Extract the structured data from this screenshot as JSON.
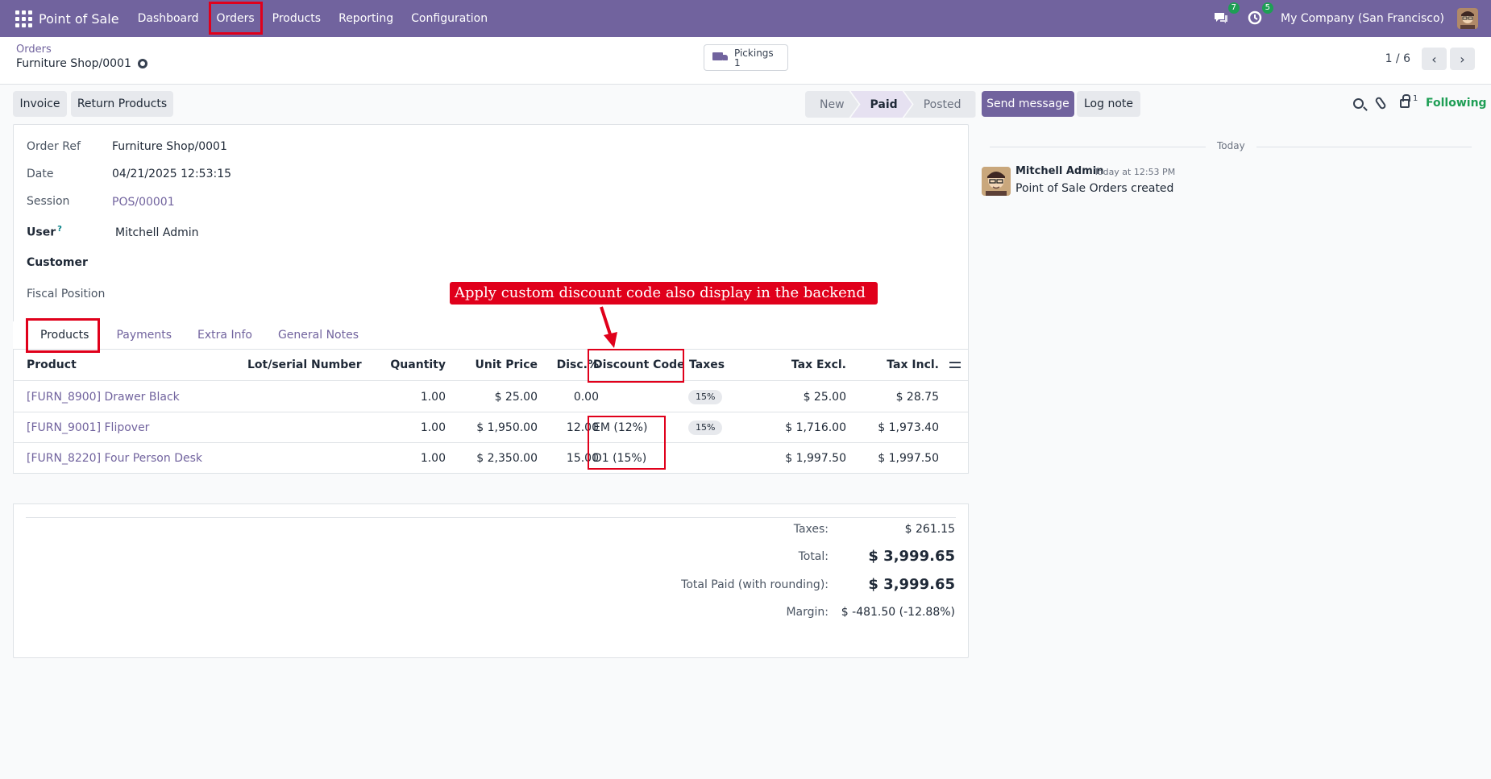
{
  "navbar": {
    "brand": "Point of Sale",
    "menu": [
      "Dashboard",
      "Orders",
      "Products",
      "Reporting",
      "Configuration"
    ],
    "messages_badge": "7",
    "activities_badge": "5",
    "company": "My Company (San Francisco)"
  },
  "breadcrumb": {
    "parent": "Orders",
    "current": "Furniture Shop/0001"
  },
  "smart_button": {
    "label": "Pickings",
    "count": "1"
  },
  "pager": {
    "value": "1 / 6",
    "prev": "‹",
    "next": "›"
  },
  "actions": {
    "invoice": "Invoice",
    "return_products": "Return Products"
  },
  "status": {
    "stages": [
      "New",
      "Paid",
      "Posted"
    ],
    "active": "Paid"
  },
  "form": {
    "order_ref_label": "Order Ref",
    "order_ref": "Furniture Shop/0001",
    "date_label": "Date",
    "date": "04/21/2025 12:53:15",
    "session_label": "Session",
    "session": "POS/00001",
    "user_label": "User",
    "user_help": "?",
    "user": "Mitchell Admin",
    "customer_label": "Customer",
    "fiscal_position_label": "Fiscal Position"
  },
  "annotation": "Apply custom discount code also display in the backend",
  "tabs": [
    "Products",
    "Payments",
    "Extra Info",
    "General Notes"
  ],
  "lines": {
    "headers": [
      "Product",
      "Lot/serial Number",
      "Quantity",
      "Unit Price",
      "Disc.%",
      "Discount Code",
      "Taxes",
      "Tax Excl.",
      "Tax Incl."
    ],
    "rows": [
      {
        "product": "[FURN_8900] Drawer Black",
        "lot": "",
        "qty": "1.00",
        "price": "$ 25.00",
        "disc": "0.00",
        "code": "",
        "taxes": "15%",
        "excl": "$ 25.00",
        "incl": "$ 28.75"
      },
      {
        "product": "[FURN_9001] Flipover",
        "lot": "",
        "qty": "1.00",
        "price": "$ 1,950.00",
        "disc": "12.00",
        "code": "EM (12%)",
        "taxes": "15%",
        "excl": "$ 1,716.00",
        "incl": "$ 1,973.40"
      },
      {
        "product": "[FURN_8220] Four Person Desk",
        "lot": "",
        "qty": "1.00",
        "price": "$ 2,350.00",
        "disc": "15.00",
        "code": "D1 (15%)",
        "taxes": "",
        "excl": "$ 1,997.50",
        "incl": "$ 1,997.50"
      }
    ]
  },
  "totals": {
    "taxes_label": "Taxes:",
    "taxes": "$ 261.15",
    "total_label": "Total:",
    "total": "$ 3,999.65",
    "paid_label": "Total Paid (with rounding):",
    "paid": "$ 3,999.65",
    "margin_label": "Margin:",
    "margin": "$ -481.50 (-12.88%)"
  },
  "chatter": {
    "send_message": "Send message",
    "log_note": "Log note",
    "followers": "1",
    "following": "Following",
    "today": "Today",
    "author": "Mitchell Admin",
    "time": "Today at 12:53 PM",
    "body": "Point of Sale Orders created"
  },
  "colors": {
    "brand": "#71639e",
    "highlight": "#e0001b",
    "success": "#1e9e55"
  }
}
